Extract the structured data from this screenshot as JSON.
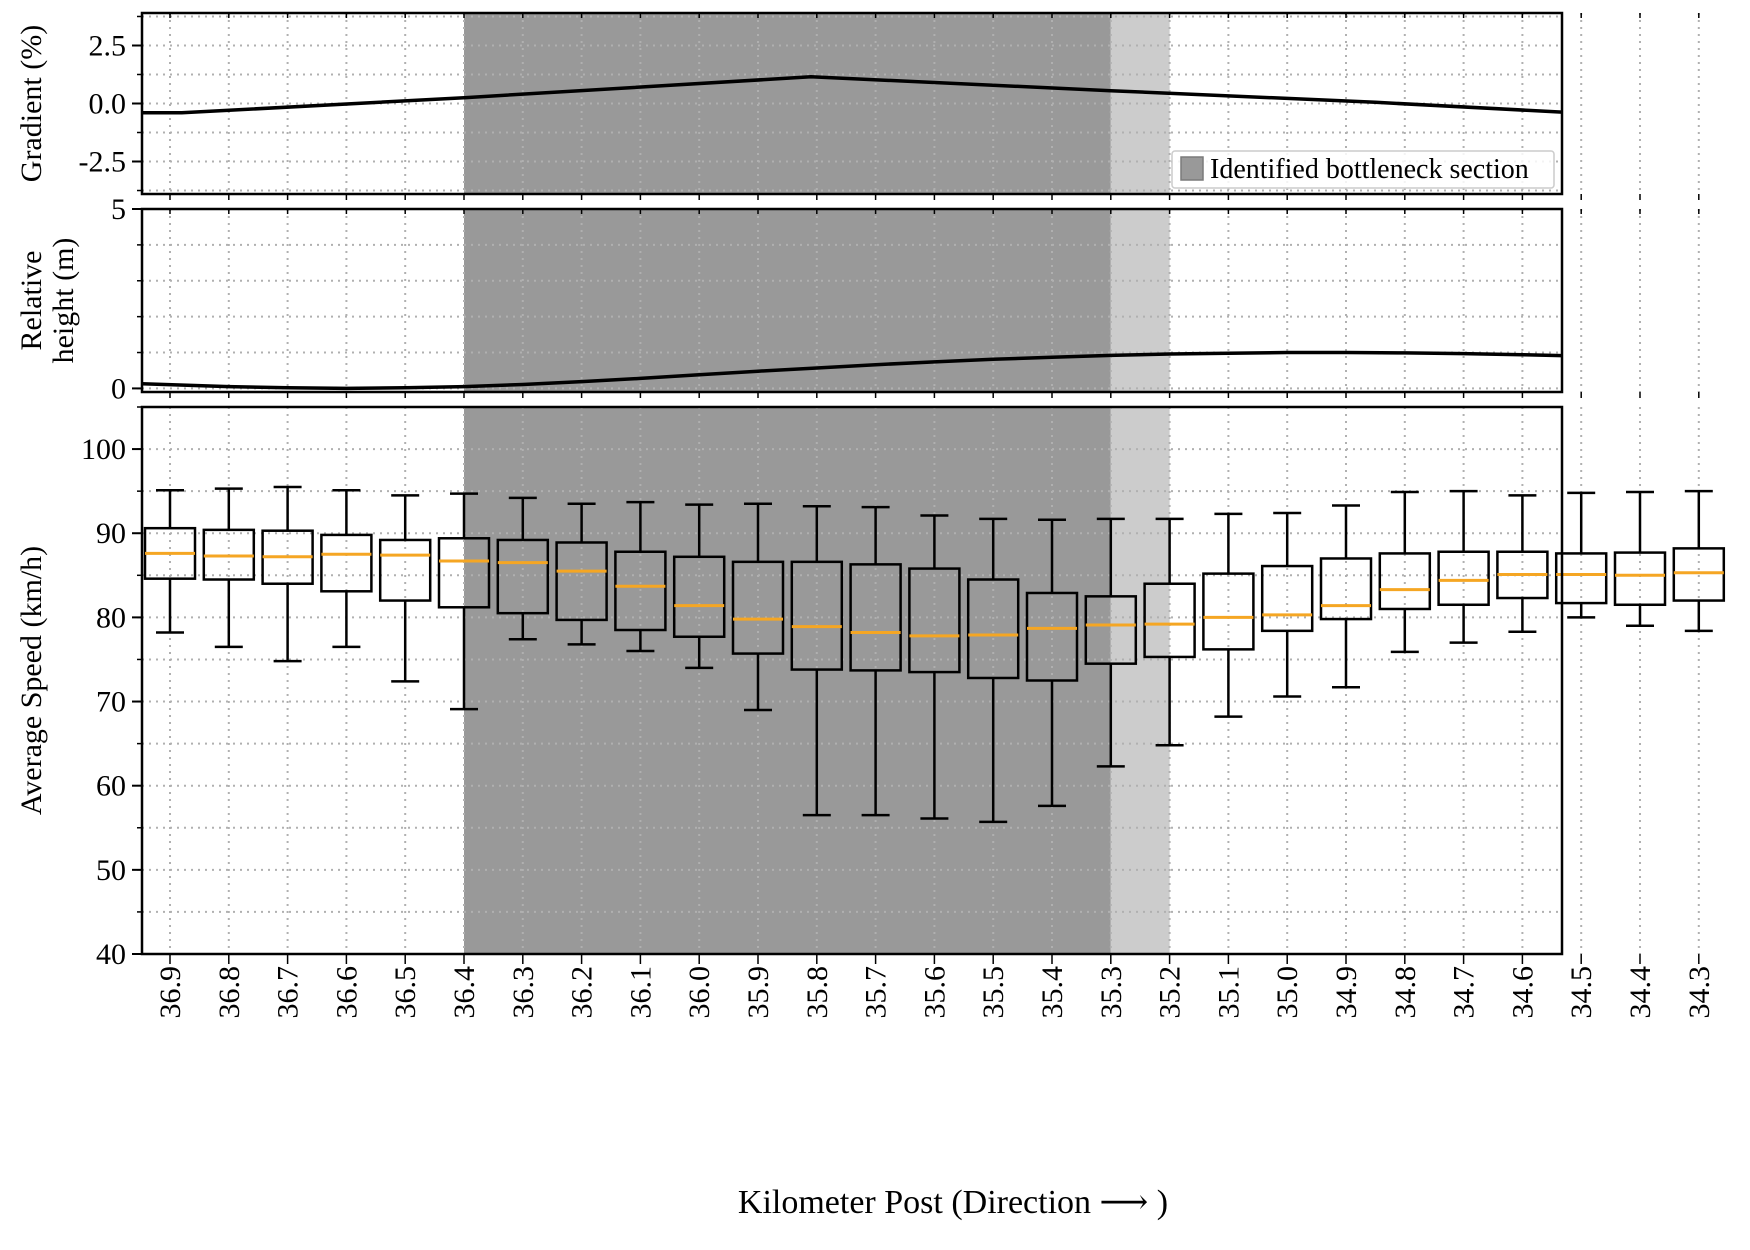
{
  "chart_data": [
    {
      "type": "line",
      "ylabel": "Gradient (%)",
      "ylim": [
        -3.9,
        3.9
      ],
      "yticks": [
        "2.5",
        "0.0",
        "-2.5"
      ],
      "ytick_values": [
        2.5,
        0.0,
        -2.5
      ],
      "grid": true,
      "legend_label": "Identified bottleneck section",
      "legend_position": "lower-right",
      "series": [
        {
          "x": [
            36.95,
            36.88,
            36.4,
            35.81,
            35.3,
            34.85,
            34.25
          ],
          "y": [
            -0.4,
            -0.4,
            0.25,
            1.15,
            0.55,
            0.05,
            -0.75
          ]
        }
      ]
    },
    {
      "type": "line",
      "ylabel": "Relative height (m)",
      "ylabel_lines": [
        "Relative",
        "height (m)"
      ],
      "ylim": [
        -0.1,
        5.0
      ],
      "yticks": [
        "5",
        "0"
      ],
      "ytick_values": [
        5,
        0
      ],
      "grid": true,
      "series": [
        {
          "x": [
            36.95,
            36.8,
            36.7,
            36.6,
            36.5,
            36.4,
            36.3,
            36.2,
            36.1,
            36.0,
            35.9,
            35.8,
            35.7,
            35.6,
            35.5,
            35.4,
            35.3,
            35.2,
            35.1,
            35.0,
            34.9,
            34.8,
            34.7,
            34.6,
            34.5,
            34.4,
            34.25
          ],
          "y": [
            0.13,
            0.05,
            0.02,
            0.0,
            0.02,
            0.05,
            0.11,
            0.19,
            0.28,
            0.38,
            0.48,
            0.57,
            0.66,
            0.74,
            0.81,
            0.87,
            0.92,
            0.96,
            0.98,
            1.0,
            1.0,
            0.99,
            0.97,
            0.94,
            0.9,
            0.85,
            0.74
          ]
        }
      ]
    },
    {
      "type": "box",
      "xlabel": "Kilometer Post (Direction ⟶ )",
      "ylabel": "Average Speed (km/h)",
      "ylim": [
        40,
        105
      ],
      "yticks": [
        "100",
        "90",
        "80",
        "70",
        "60",
        "50",
        "40"
      ],
      "ytick_values": [
        100,
        90,
        80,
        70,
        60,
        50,
        40
      ],
      "grid": true,
      "bottleneck_main": [
        36.4,
        35.3
      ],
      "bottleneck_extension": [
        35.3,
        35.2
      ],
      "categories": [
        "36.9",
        "36.8",
        "36.7",
        "36.6",
        "36.5",
        "36.4",
        "36.3",
        "36.2",
        "36.1",
        "36.0",
        "35.9",
        "35.8",
        "35.7",
        "35.6",
        "35.5",
        "35.4",
        "35.3",
        "35.2",
        "35.1",
        "35.0",
        "34.9",
        "34.8",
        "34.7",
        "34.6",
        "34.5",
        "34.4",
        "34.3"
      ],
      "boxes": [
        {
          "whislo": 78.2,
          "q1": 84.6,
          "med": 87.6,
          "q3": 90.6,
          "whishi": 95.1
        },
        {
          "whislo": 76.5,
          "q1": 84.5,
          "med": 87.3,
          "q3": 90.4,
          "whishi": 95.3
        },
        {
          "whislo": 74.8,
          "q1": 84.0,
          "med": 87.2,
          "q3": 90.3,
          "whishi": 95.5
        },
        {
          "whislo": 76.5,
          "q1": 83.1,
          "med": 87.5,
          "q3": 89.8,
          "whishi": 95.1
        },
        {
          "whislo": 72.4,
          "q1": 82.0,
          "med": 87.4,
          "q3": 89.2,
          "whishi": 94.5
        },
        {
          "whislo": 69.1,
          "q1": 81.2,
          "med": 86.7,
          "q3": 89.4,
          "whishi": 94.7
        },
        {
          "whislo": 77.4,
          "q1": 80.5,
          "med": 86.5,
          "q3": 89.2,
          "whishi": 94.2
        },
        {
          "whislo": 76.8,
          "q1": 79.7,
          "med": 85.5,
          "q3": 88.9,
          "whishi": 93.5
        },
        {
          "whislo": 76.0,
          "q1": 78.5,
          "med": 83.7,
          "q3": 87.8,
          "whishi": 93.7
        },
        {
          "whislo": 74.0,
          "q1": 77.7,
          "med": 81.4,
          "q3": 87.2,
          "whishi": 93.4
        },
        {
          "whislo": 69.0,
          "q1": 75.7,
          "med": 79.8,
          "q3": 86.6,
          "whishi": 93.5
        },
        {
          "whislo": 56.5,
          "q1": 73.8,
          "med": 78.9,
          "q3": 86.6,
          "whishi": 93.2
        },
        {
          "whislo": 56.5,
          "q1": 73.7,
          "med": 78.2,
          "q3": 86.3,
          "whishi": 93.1
        },
        {
          "whislo": 56.1,
          "q1": 73.5,
          "med": 77.8,
          "q3": 85.8,
          "whishi": 92.1
        },
        {
          "whislo": 55.7,
          "q1": 72.8,
          "med": 77.9,
          "q3": 84.5,
          "whishi": 91.7
        },
        {
          "whislo": 57.6,
          "q1": 72.5,
          "med": 78.7,
          "q3": 82.9,
          "whishi": 91.6
        },
        {
          "whislo": 62.3,
          "q1": 74.5,
          "med": 79.1,
          "q3": 82.5,
          "whishi": 91.7
        },
        {
          "whislo": 64.8,
          "q1": 75.3,
          "med": 79.2,
          "q3": 84.0,
          "whishi": 91.7
        },
        {
          "whislo": 68.2,
          "q1": 76.2,
          "med": 80.0,
          "q3": 85.2,
          "whishi": 92.3
        },
        {
          "whislo": 70.6,
          "q1": 78.4,
          "med": 80.3,
          "q3": 86.1,
          "whishi": 92.4
        },
        {
          "whislo": 71.7,
          "q1": 79.8,
          "med": 81.4,
          "q3": 87.0,
          "whishi": 93.3
        },
        {
          "whislo": 75.9,
          "q1": 81.0,
          "med": 83.3,
          "q3": 87.6,
          "whishi": 94.9
        },
        {
          "whislo": 77.0,
          "q1": 81.5,
          "med": 84.4,
          "q3": 87.8,
          "whishi": 95.0
        },
        {
          "whislo": 78.3,
          "q1": 82.3,
          "med": 85.1,
          "q3": 87.8,
          "whishi": 94.5
        },
        {
          "whislo": 80.0,
          "q1": 81.7,
          "med": 85.1,
          "q3": 87.6,
          "whishi": 94.8
        },
        {
          "whislo": 79.0,
          "q1": 81.5,
          "med": 85.0,
          "q3": 87.7,
          "whishi": 94.9
        },
        {
          "whislo": 78.4,
          "q1": 82.0,
          "med": 85.3,
          "q3": 88.2,
          "whishi": 95.0
        }
      ]
    }
  ],
  "colors": {
    "bottleneck_main": "#999999",
    "bottleneck_extension": "#cccccc",
    "median": "#f5a623",
    "line": "#000000",
    "grid": "#b0b0b0"
  }
}
